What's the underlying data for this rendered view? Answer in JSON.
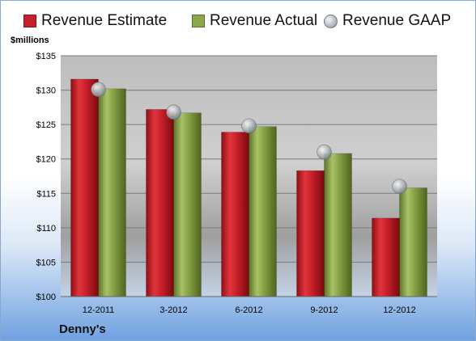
{
  "chart_data": {
    "type": "bar",
    "categories": [
      "12-2011",
      "3-2012",
      "6-2012",
      "9-2012",
      "12-2012"
    ],
    "series": [
      {
        "name": "Revenue Estimate",
        "type": "bar",
        "color": "#c8202a",
        "values": [
          131.6,
          127.2,
          123.9,
          118.3,
          111.4
        ]
      },
      {
        "name": "Revenue Actual",
        "type": "bar",
        "color": "#7f9a3e",
        "values": [
          130.2,
          126.7,
          124.7,
          120.8,
          115.8
        ]
      },
      {
        "name": "Revenue GAAP",
        "type": "marker",
        "color": "#b8bec5",
        "values": [
          130.1,
          126.8,
          124.8,
          121.0,
          116.0
        ]
      }
    ],
    "ylabel": "$millions",
    "ylim": [
      100,
      135
    ],
    "yticks": [
      "$100",
      "$105",
      "$110",
      "$115",
      "$120",
      "$125",
      "$130",
      "$135"
    ],
    "ytick_values": [
      100,
      105,
      110,
      115,
      120,
      125,
      130,
      135
    ],
    "grid": true,
    "legend_position": "top"
  },
  "company": "Denny's"
}
